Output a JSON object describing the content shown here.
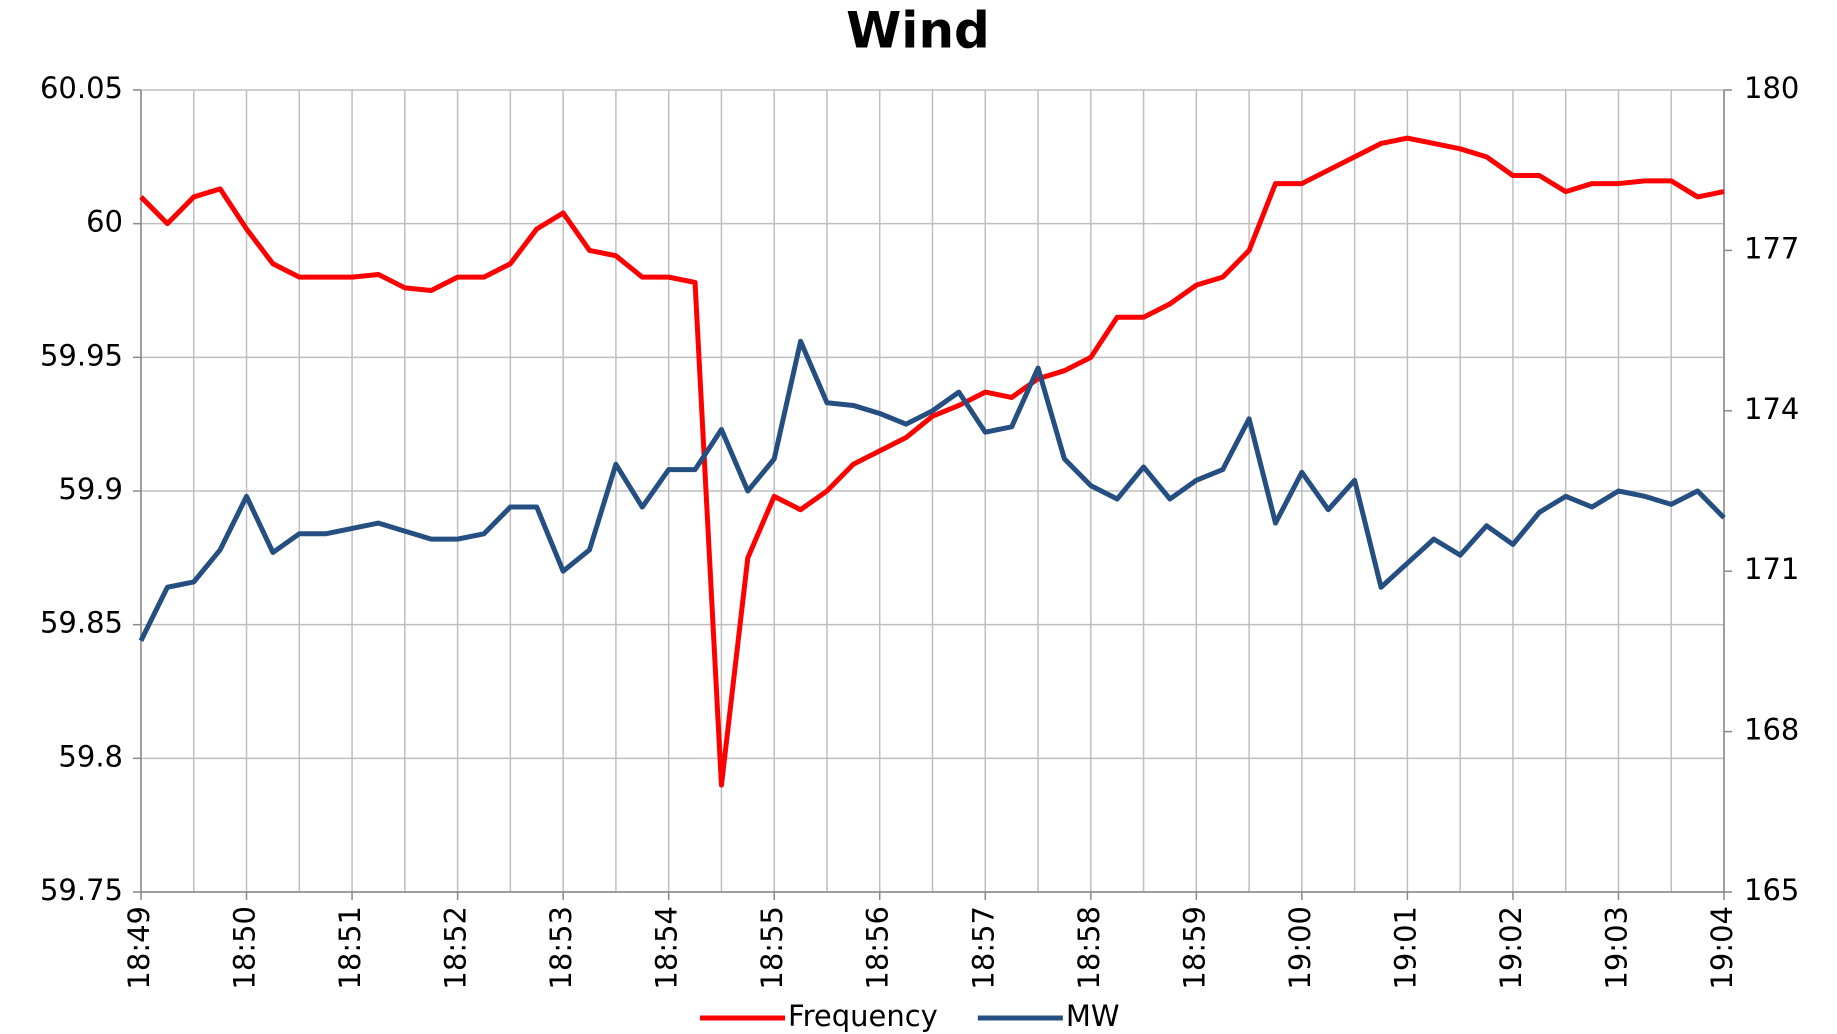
{
  "chart_data": {
    "type": "line",
    "title": "Wind",
    "categories": [
      "18:49",
      null,
      null,
      null,
      "18:50",
      null,
      null,
      null,
      "18:51",
      null,
      null,
      null,
      "18:52",
      null,
      null,
      null,
      "18:53",
      null,
      null,
      null,
      "18:54",
      null,
      null,
      null,
      "18:55",
      null,
      null,
      null,
      "18:56",
      null,
      null,
      null,
      "18:57",
      null,
      null,
      null,
      "18:58",
      null,
      null,
      null,
      "18:59",
      null,
      null,
      null,
      "19:00",
      null,
      null,
      null,
      "19:01",
      null,
      null,
      null,
      "19:02",
      null,
      null,
      null,
      "19:03",
      null,
      null,
      null,
      "19:04"
    ],
    "series": [
      {
        "name": "Frequency",
        "color": "#ff0000",
        "values": [
          60.01,
          60.0,
          60.01,
          60.013,
          59.998,
          59.985,
          59.98,
          59.98,
          59.98,
          59.981,
          59.976,
          59.975,
          59.98,
          59.98,
          59.985,
          59.998,
          60.004,
          59.99,
          59.988,
          59.98,
          59.98,
          59.978,
          59.79,
          59.875,
          59.898,
          59.893,
          59.9,
          59.91,
          59.915,
          59.92,
          59.928,
          59.932,
          59.937,
          59.935,
          59.942,
          59.945,
          59.95,
          59.965,
          59.965,
          59.97,
          59.977,
          59.98,
          59.99,
          60.015,
          60.015,
          60.02,
          60.025,
          60.03,
          60.032,
          60.03,
          60.028,
          60.025,
          60.018,
          60.018,
          60.012,
          60.015,
          60.015,
          60.016,
          60.016,
          60.01,
          60.012
        ]
      },
      {
        "name": "MW",
        "color": "#254f80",
        "axis": "y2",
        "values": [
          169.7,
          170.7,
          170.8,
          171.4,
          172.4,
          171.35,
          171.7,
          171.7,
          171.8,
          171.9,
          171.75,
          171.6,
          171.6,
          171.7,
          172.2,
          172.2,
          171.0,
          171.4,
          173.0,
          172.2,
          172.9,
          172.9,
          173.65,
          172.5,
          173.1,
          175.3,
          174.15,
          174.1,
          173.95,
          173.75,
          174.0,
          174.35,
          173.6,
          173.7,
          174.8,
          173.1,
          172.6,
          172.35,
          172.95,
          172.35,
          172.7,
          172.9,
          173.85,
          171.9,
          172.85,
          172.15,
          172.7,
          170.7,
          171.15,
          171.6,
          171.3,
          171.85,
          171.5,
          172.1,
          172.4,
          172.2,
          172.5,
          172.4,
          172.25,
          172.5,
          172.0
        ]
      }
    ],
    "ylim": [
      59.75,
      60.05
    ],
    "yticks": [
      59.75,
      59.8,
      59.85,
      59.9,
      59.95,
      60,
      60.05
    ],
    "y2lim": [
      165,
      180
    ],
    "y2ticks": [
      165,
      168,
      171,
      174,
      177,
      180
    ],
    "grid": true,
    "legend": "bottom"
  }
}
